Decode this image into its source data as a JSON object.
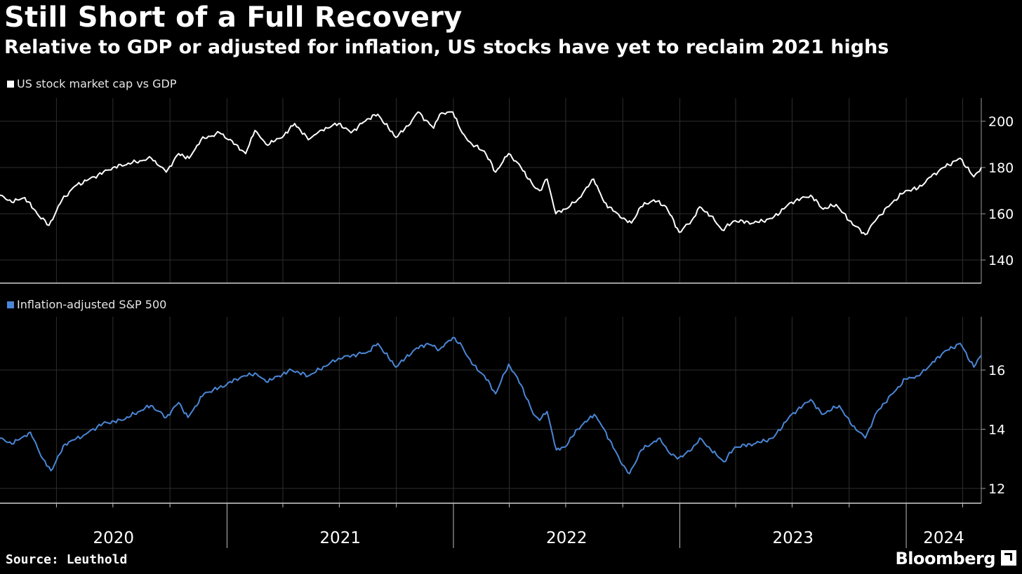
{
  "title": "Still Short of a Full Recovery",
  "subtitle": "Relative to GDP or adjusted for inflation, US stocks have yet to reclaim 2021 highs",
  "source": "Source: Leuthold",
  "brand": "Bloomberg",
  "colors": {
    "background": "#000000",
    "series1": "#ffffff",
    "series2": "#4a86d6",
    "grid": "#2e2e2e",
    "axis": "#9a9a9a"
  },
  "chart_data": [
    {
      "type": "line",
      "legend": "US stock market cap vs GDP",
      "ylim": [
        130,
        210
      ],
      "yticks": [
        140,
        160,
        180,
        200
      ],
      "xlim": [
        "2020-01-01",
        "2024-05-01"
      ],
      "xticks": [
        "2020",
        "2021",
        "2022",
        "2023",
        "2024"
      ],
      "grid": true,
      "series": [
        {
          "color": "#ffffff",
          "points": [
            [
              "2020-01-01",
              168
            ],
            [
              "2020-01-20",
              165
            ],
            [
              "2020-02-10",
              167
            ],
            [
              "2020-03-01",
              160
            ],
            [
              "2020-03-20",
              155
            ],
            [
              "2020-04-10",
              166
            ],
            [
              "2020-05-01",
              172
            ],
            [
              "2020-06-01",
              176
            ],
            [
              "2020-07-01",
              180
            ],
            [
              "2020-08-01",
              182
            ],
            [
              "2020-09-01",
              184
            ],
            [
              "2020-09-25",
              178
            ],
            [
              "2020-10-15",
              186
            ],
            [
              "2020-11-01",
              184
            ],
            [
              "2020-11-20",
              192
            ],
            [
              "2020-12-20",
              195
            ],
            [
              "2021-01-15",
              190
            ],
            [
              "2021-01-31",
              186
            ],
            [
              "2021-02-15",
              196
            ],
            [
              "2021-03-05",
              190
            ],
            [
              "2021-03-31",
              193
            ],
            [
              "2021-04-20",
              199
            ],
            [
              "2021-05-12",
              192
            ],
            [
              "2021-05-31",
              196
            ],
            [
              "2021-06-30",
              199
            ],
            [
              "2021-07-20",
              195
            ],
            [
              "2021-08-15",
              201
            ],
            [
              "2021-09-01",
              203
            ],
            [
              "2021-09-30",
              193
            ],
            [
              "2021-10-20",
              198
            ],
            [
              "2021-11-05",
              204
            ],
            [
              "2021-11-30",
              197
            ],
            [
              "2021-12-10",
              203
            ],
            [
              "2021-12-31",
              204
            ],
            [
              "2022-01-15",
              195
            ],
            [
              "2022-01-31",
              190
            ],
            [
              "2022-02-20",
              187
            ],
            [
              "2022-03-10",
              178
            ],
            [
              "2022-03-31",
              186
            ],
            [
              "2022-04-20",
              180
            ],
            [
              "2022-05-10",
              172
            ],
            [
              "2022-05-20",
              170
            ],
            [
              "2022-06-01",
              175
            ],
            [
              "2022-06-15",
              160
            ],
            [
              "2022-06-30",
              162
            ],
            [
              "2022-07-20",
              166
            ],
            [
              "2022-08-15",
              175
            ],
            [
              "2022-09-01",
              165
            ],
            [
              "2022-09-30",
              158
            ],
            [
              "2022-10-15",
              156
            ],
            [
              "2022-10-30",
              163
            ],
            [
              "2022-11-20",
              166
            ],
            [
              "2022-12-10",
              163
            ],
            [
              "2022-12-31",
              152
            ],
            [
              "2023-01-20",
              157
            ],
            [
              "2023-02-02",
              163
            ],
            [
              "2023-02-20",
              159
            ],
            [
              "2023-03-10",
              153
            ],
            [
              "2023-03-31",
              157
            ],
            [
              "2023-04-30",
              156
            ],
            [
              "2023-05-30",
              158
            ],
            [
              "2023-06-30",
              165
            ],
            [
              "2023-07-31",
              168
            ],
            [
              "2023-08-20",
              162
            ],
            [
              "2023-09-10",
              164
            ],
            [
              "2023-10-01",
              157
            ],
            [
              "2023-10-27",
              151
            ],
            [
              "2023-11-15",
              158
            ],
            [
              "2023-12-10",
              165
            ],
            [
              "2023-12-31",
              170
            ],
            [
              "2024-01-20",
              171
            ],
            [
              "2024-02-10",
              176
            ],
            [
              "2024-03-01",
              180
            ],
            [
              "2024-03-28",
              184
            ],
            [
              "2024-04-19",
              176
            ],
            [
              "2024-05-01",
              180
            ]
          ]
        }
      ]
    },
    {
      "type": "line",
      "legend": "Inflation-adjusted S&P 500",
      "ylim": [
        11.5,
        17.8
      ],
      "yticks": [
        12,
        14,
        16
      ],
      "xlim": [
        "2020-01-01",
        "2024-05-01"
      ],
      "xticks": [
        "2020",
        "2021",
        "2022",
        "2023",
        "2024"
      ],
      "grid": true,
      "series": [
        {
          "color": "#4a86d6",
          "points": [
            [
              "2020-01-01",
              13.7
            ],
            [
              "2020-01-20",
              13.5
            ],
            [
              "2020-02-19",
              13.9
            ],
            [
              "2020-03-10",
              13.0
            ],
            [
              "2020-03-23",
              12.6
            ],
            [
              "2020-04-15",
              13.5
            ],
            [
              "2020-05-15",
              13.8
            ],
            [
              "2020-06-15",
              14.2
            ],
            [
              "2020-07-15",
              14.3
            ],
            [
              "2020-08-31",
              14.8
            ],
            [
              "2020-09-25",
              14.4
            ],
            [
              "2020-10-15",
              14.9
            ],
            [
              "2020-10-30",
              14.4
            ],
            [
              "2020-11-25",
              15.2
            ],
            [
              "2020-12-31",
              15.5
            ],
            [
              "2021-01-15",
              15.7
            ],
            [
              "2021-02-15",
              15.9
            ],
            [
              "2021-03-05",
              15.6
            ],
            [
              "2021-04-15",
              16.0
            ],
            [
              "2021-05-12",
              15.8
            ],
            [
              "2021-06-30",
              16.4
            ],
            [
              "2021-08-15",
              16.6
            ],
            [
              "2021-09-01",
              16.9
            ],
            [
              "2021-09-30",
              16.1
            ],
            [
              "2021-10-31",
              16.7
            ],
            [
              "2021-11-20",
              16.9
            ],
            [
              "2021-12-10",
              16.7
            ],
            [
              "2021-12-31",
              17.1
            ],
            [
              "2022-01-15",
              16.8
            ],
            [
              "2022-01-31",
              16.2
            ],
            [
              "2022-02-20",
              15.8
            ],
            [
              "2022-03-10",
              15.2
            ],
            [
              "2022-03-31",
              16.2
            ],
            [
              "2022-04-20",
              15.5
            ],
            [
              "2022-05-10",
              14.5
            ],
            [
              "2022-05-20",
              14.3
            ],
            [
              "2022-06-01",
              14.6
            ],
            [
              "2022-06-16",
              13.3
            ],
            [
              "2022-06-30",
              13.4
            ],
            [
              "2022-07-20",
              14.0
            ],
            [
              "2022-08-16",
              14.5
            ],
            [
              "2022-09-01",
              14.0
            ],
            [
              "2022-09-30",
              12.8
            ],
            [
              "2022-10-12",
              12.5
            ],
            [
              "2022-10-31",
              13.3
            ],
            [
              "2022-11-30",
              13.7
            ],
            [
              "2022-12-15",
              13.2
            ],
            [
              "2022-12-28",
              13.0
            ],
            [
              "2023-01-20",
              13.3
            ],
            [
              "2023-02-02",
              13.7
            ],
            [
              "2023-02-20",
              13.3
            ],
            [
              "2023-03-13",
              12.9
            ],
            [
              "2023-03-31",
              13.4
            ],
            [
              "2023-04-30",
              13.5
            ],
            [
              "2023-05-31",
              13.7
            ],
            [
              "2023-06-30",
              14.5
            ],
            [
              "2023-07-31",
              15.0
            ],
            [
              "2023-08-18",
              14.5
            ],
            [
              "2023-09-15",
              14.8
            ],
            [
              "2023-10-03",
              14.2
            ],
            [
              "2023-10-27",
              13.7
            ],
            [
              "2023-11-15",
              14.6
            ],
            [
              "2023-12-10",
              15.2
            ],
            [
              "2023-12-31",
              15.7
            ],
            [
              "2024-01-20",
              15.8
            ],
            [
              "2024-02-10",
              16.2
            ],
            [
              "2024-03-01",
              16.6
            ],
            [
              "2024-03-28",
              16.9
            ],
            [
              "2024-04-19",
              16.1
            ],
            [
              "2024-05-01",
              16.5
            ]
          ]
        }
      ]
    }
  ]
}
